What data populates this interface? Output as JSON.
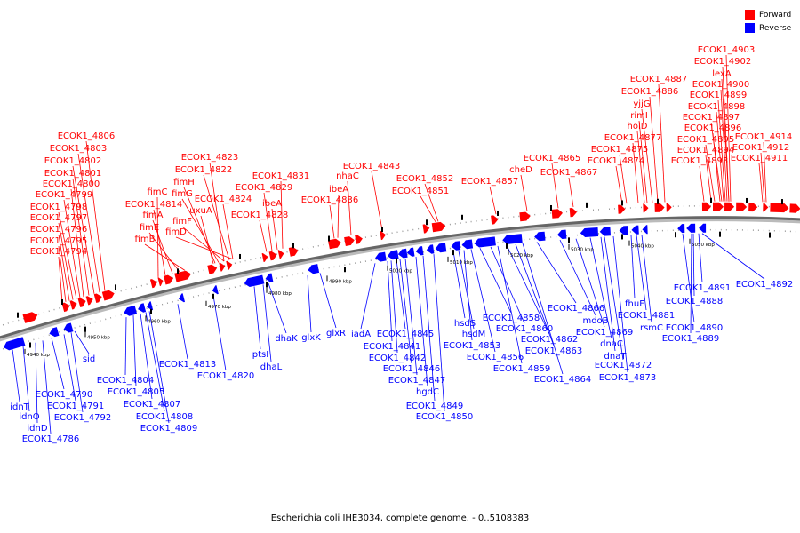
{
  "title": "Escherichia coli IHE3034, complete genome. - 0..5108383",
  "legend": [
    {
      "label": "Forward",
      "color": "#ff0000"
    },
    {
      "label": "Reverse",
      "color": "#0000ff"
    }
  ],
  "colors": {
    "forward": "#ff0000",
    "reverse": "#0000ff",
    "backbone": "#666666"
  },
  "ticks": [
    "4940 kbp",
    "4950 kbp",
    "4960 kbp",
    "4970 kbp",
    "4980 kbp",
    "4990 kbp",
    "5000 kbp",
    "5010 kbp",
    "5020 kbp",
    "5030 kbp",
    "5040 kbp",
    "5050 kbp"
  ],
  "forward_labels": [
    "ECOK1_4806",
    "ECOK1_4803",
    "ECOK1_4802",
    "ECOK1_4801",
    "ECOK1_4800",
    "ECOK1_4799",
    "ECOK1_4798",
    "ECOK1_4797",
    "ECOK1_4796",
    "ECOK1_4795",
    "ECOK1_4794",
    "fimC",
    "ECOK1_4814",
    "fimA",
    "fimE",
    "fimB",
    "fimH",
    "fimG",
    "fimF",
    "fimD",
    "ECOK1_4823",
    "ECOK1_4822",
    "ECOK1_4824",
    "uxuA",
    "ECOK1_4831",
    "ECOK1_4829",
    "ibeA",
    "ECOK1_4828",
    "nhaC",
    "ibeA",
    "ECOK1_4836",
    "ECOK1_4843",
    "ECOK1_4852",
    "ECOK1_4851",
    "ECOK1_4857",
    "cheD",
    "ECOK1_4865",
    "ECOK1_4867",
    "ECOK1_4887",
    "ECOK1_4886",
    "yjjG",
    "rimI",
    "holD",
    "ECOK1_4877",
    "ECOK1_4875",
    "ECOK1_4874",
    "ECOK1_4903",
    "ECOK1_4902",
    "lexA",
    "ECOK1_4900",
    "ECOK1_4899",
    "ECOK1_4898",
    "ECOK1_4897",
    "ECOK1_4896",
    "ECOK1_4895",
    "ECOK1_4894",
    "ECOK1_4893",
    "ECOK1_4914",
    "ECOK1_4912",
    "ECOK1_4911"
  ],
  "reverse_labels": [
    "sid",
    "idnT",
    "ECOK1_4790",
    "idnO",
    "ECOK1_4791",
    "idnD",
    "ECOK1_4792",
    "ECOK1_4786",
    "ECOK1_4804",
    "ECOK1_4805",
    "ECOK1_4807",
    "ECOK1_4808",
    "ECOK1_4809",
    "ECOK1_4813",
    "ECOK1_4820",
    "ptsI",
    "dhaL",
    "dhaK",
    "glxK",
    "glxR",
    "iadA",
    "ECOK1_4845",
    "ECOK1_4841",
    "ECOK1_4842",
    "ECOK1_4846",
    "ECOK1_4847",
    "hgdC",
    "ECOK1_4849",
    "ECOK1_4850",
    "hsdS",
    "hsdM",
    "ECOK1_4853",
    "ECOK1_4858",
    "ECOK1_4860",
    "ECOK1_4856",
    "ECOK1_4862",
    "ECOK1_4859",
    "ECOK1_4863",
    "ECOK1_4864",
    "ECOK1_4866",
    "mdoB",
    "ECOK1_4869",
    "dnaC",
    "dnaT",
    "ECOK1_4872",
    "ECOK1_4873",
    "fhuF",
    "ECOK1_4881",
    "rsmC",
    "ECOK1_4890",
    "ECOK1_4889",
    "ECOK1_4888",
    "ECOK1_4891",
    "ECOK1_4892"
  ]
}
